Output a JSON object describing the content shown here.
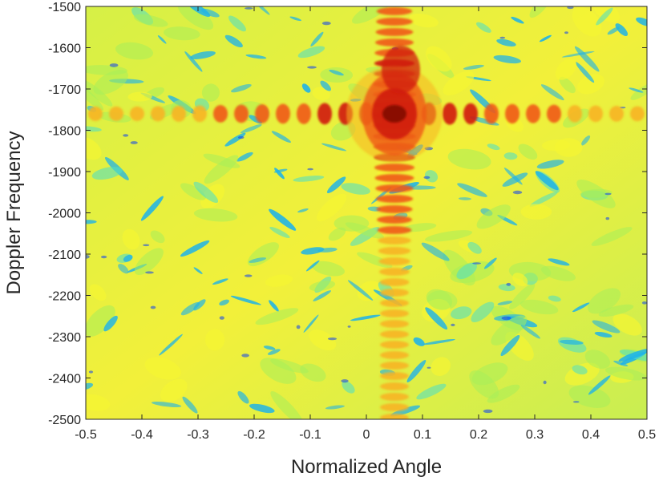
{
  "chart_data": {
    "type": "heatmap",
    "title": "",
    "xlabel": "Normalized Angle",
    "ylabel": "Doppler Frequency",
    "xlim": [
      -0.5,
      0.5
    ],
    "ylim": [
      -2500,
      -1500
    ],
    "y_reversed": true,
    "x_ticks": [
      -0.5,
      -0.4,
      -0.3,
      -0.2,
      -0.1,
      0,
      0.1,
      0.2,
      0.3,
      0.4,
      0.5
    ],
    "x_tick_labels": [
      "-0.5",
      "-0.4",
      "-0.3",
      "-0.2",
      "-0.1",
      "0",
      "0.1",
      "0.2",
      "0.3",
      "0.4",
      "0.5"
    ],
    "y_ticks": [
      -1500,
      -1600,
      -1700,
      -1800,
      -1900,
      -2000,
      -2100,
      -2200,
      -2300,
      -2400,
      -2500
    ],
    "y_tick_labels": [
      "-1500",
      "-1600",
      "-1700",
      "-1800",
      "-1900",
      "-2000",
      "-2100",
      "-2200",
      "-2300",
      "-2400",
      "-2500"
    ],
    "peak": {
      "normalized_angle": 0.05,
      "doppler_frequency": -1760
    },
    "ridges": [
      {
        "orientation": "vertical",
        "normalized_angle": 0.05
      },
      {
        "orientation": "horizontal",
        "doppler_frequency": -1760
      }
    ],
    "colormap": [
      "#0a3df5",
      "#1fb3e8",
      "#55e0c0",
      "#a8ee5a",
      "#f5f532",
      "#f7b421",
      "#ef5a14",
      "#d01a0a",
      "#8a0a06"
    ],
    "grid": false
  }
}
